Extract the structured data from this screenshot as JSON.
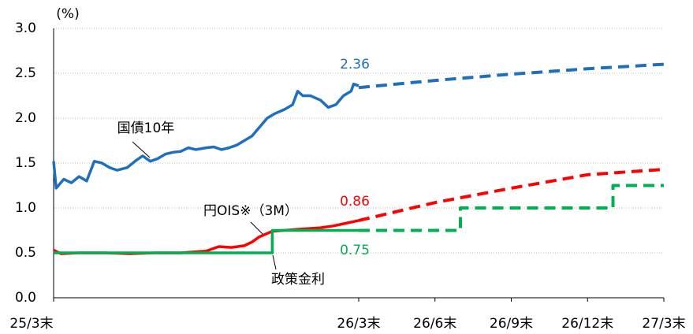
{
  "chart_data": {
    "type": "line",
    "y_unit_label": "(%)",
    "xlim": [
      0,
      24
    ],
    "xticks": [
      {
        "value": 0,
        "label": "25/3末"
      },
      {
        "value": 12,
        "label": "26/3末"
      },
      {
        "value": 15,
        "label": "26/6末"
      },
      {
        "value": 18,
        "label": "26/9末"
      },
      {
        "value": 21,
        "label": "26/12末"
      },
      {
        "value": 24,
        "label": "27/3末"
      }
    ],
    "ylim": [
      0,
      3
    ],
    "yticks": [
      {
        "value": 0,
        "label": "0.0"
      },
      0.5,
      {
        "value": 1,
        "label": "1.0"
      },
      1.5,
      {
        "value": 2,
        "label": "2.0"
      },
      2.5,
      {
        "value": 3,
        "label": "3.0"
      }
    ],
    "grid": true,
    "series": [
      {
        "name": "国債10年",
        "color": "#1f6fbf",
        "dashed": false,
        "x": [
          0,
          0.1,
          0.4,
          0.7,
          1.0,
          1.3,
          1.6,
          1.9,
          2.2,
          2.5,
          2.9,
          3.2,
          3.5,
          3.8,
          4.1,
          4.4,
          4.7,
          5.0,
          5.3,
          5.6,
          6.0,
          6.3,
          6.6,
          6.9,
          7.2,
          7.5,
          7.8,
          8.1,
          8.4,
          8.7,
          9.1,
          9.4,
          9.6,
          9.8,
          10.1,
          10.5,
          10.8,
          11.1,
          11.4,
          11.7,
          11.8,
          12
        ],
        "values": [
          1.52,
          1.22,
          1.32,
          1.28,
          1.35,
          1.3,
          1.52,
          1.5,
          1.45,
          1.42,
          1.45,
          1.52,
          1.58,
          1.52,
          1.55,
          1.6,
          1.62,
          1.63,
          1.67,
          1.65,
          1.67,
          1.68,
          1.65,
          1.67,
          1.7,
          1.75,
          1.8,
          1.9,
          2.0,
          2.05,
          2.1,
          2.15,
          2.3,
          2.25,
          2.25,
          2.2,
          2.12,
          2.15,
          2.25,
          2.3,
          2.38,
          2.36
        ]
      },
      {
        "color": "#1f6fbf",
        "dashed": true,
        "x": [
          12,
          15,
          18,
          21,
          24
        ],
        "values": [
          2.34,
          2.42,
          2.49,
          2.55,
          2.6
        ]
      },
      {
        "name": "円OIS※（3M）",
        "color": "#ff0000",
        "dashed": false,
        "x": [
          0,
          0.3,
          1,
          2,
          3,
          4,
          5,
          6,
          6.5,
          7,
          7.5,
          7.8,
          8.1,
          8.6,
          9.5,
          10.5,
          11,
          11.5,
          12
        ],
        "values": [
          0.53,
          0.49,
          0.5,
          0.5,
          0.49,
          0.5,
          0.5,
          0.52,
          0.57,
          0.56,
          0.58,
          0.62,
          0.68,
          0.74,
          0.76,
          0.78,
          0.8,
          0.83,
          0.86
        ]
      },
      {
        "color": "#ff0000",
        "dashed": true,
        "x": [
          12,
          15,
          18,
          21,
          24
        ],
        "values": [
          0.86,
          1.06,
          1.22,
          1.37,
          1.43
        ]
      },
      {
        "name": "政策金利",
        "color": "#00b050",
        "dashed": false,
        "x": [
          0,
          8.6,
          8.6,
          12
        ],
        "values": [
          0.5,
          0.5,
          0.75,
          0.75
        ]
      },
      {
        "color": "#00b050",
        "dashed": true,
        "x": [
          12,
          16,
          16,
          22,
          22,
          24
        ],
        "values": [
          0.75,
          0.75,
          1.0,
          1.0,
          1.25,
          1.25
        ]
      }
    ],
    "annotations": [
      {
        "text": "2.36",
        "color": "#1f6fbf"
      },
      {
        "text": "0.86",
        "color": "#ff0000"
      },
      {
        "text": "0.75",
        "color": "#00b050"
      }
    ]
  }
}
